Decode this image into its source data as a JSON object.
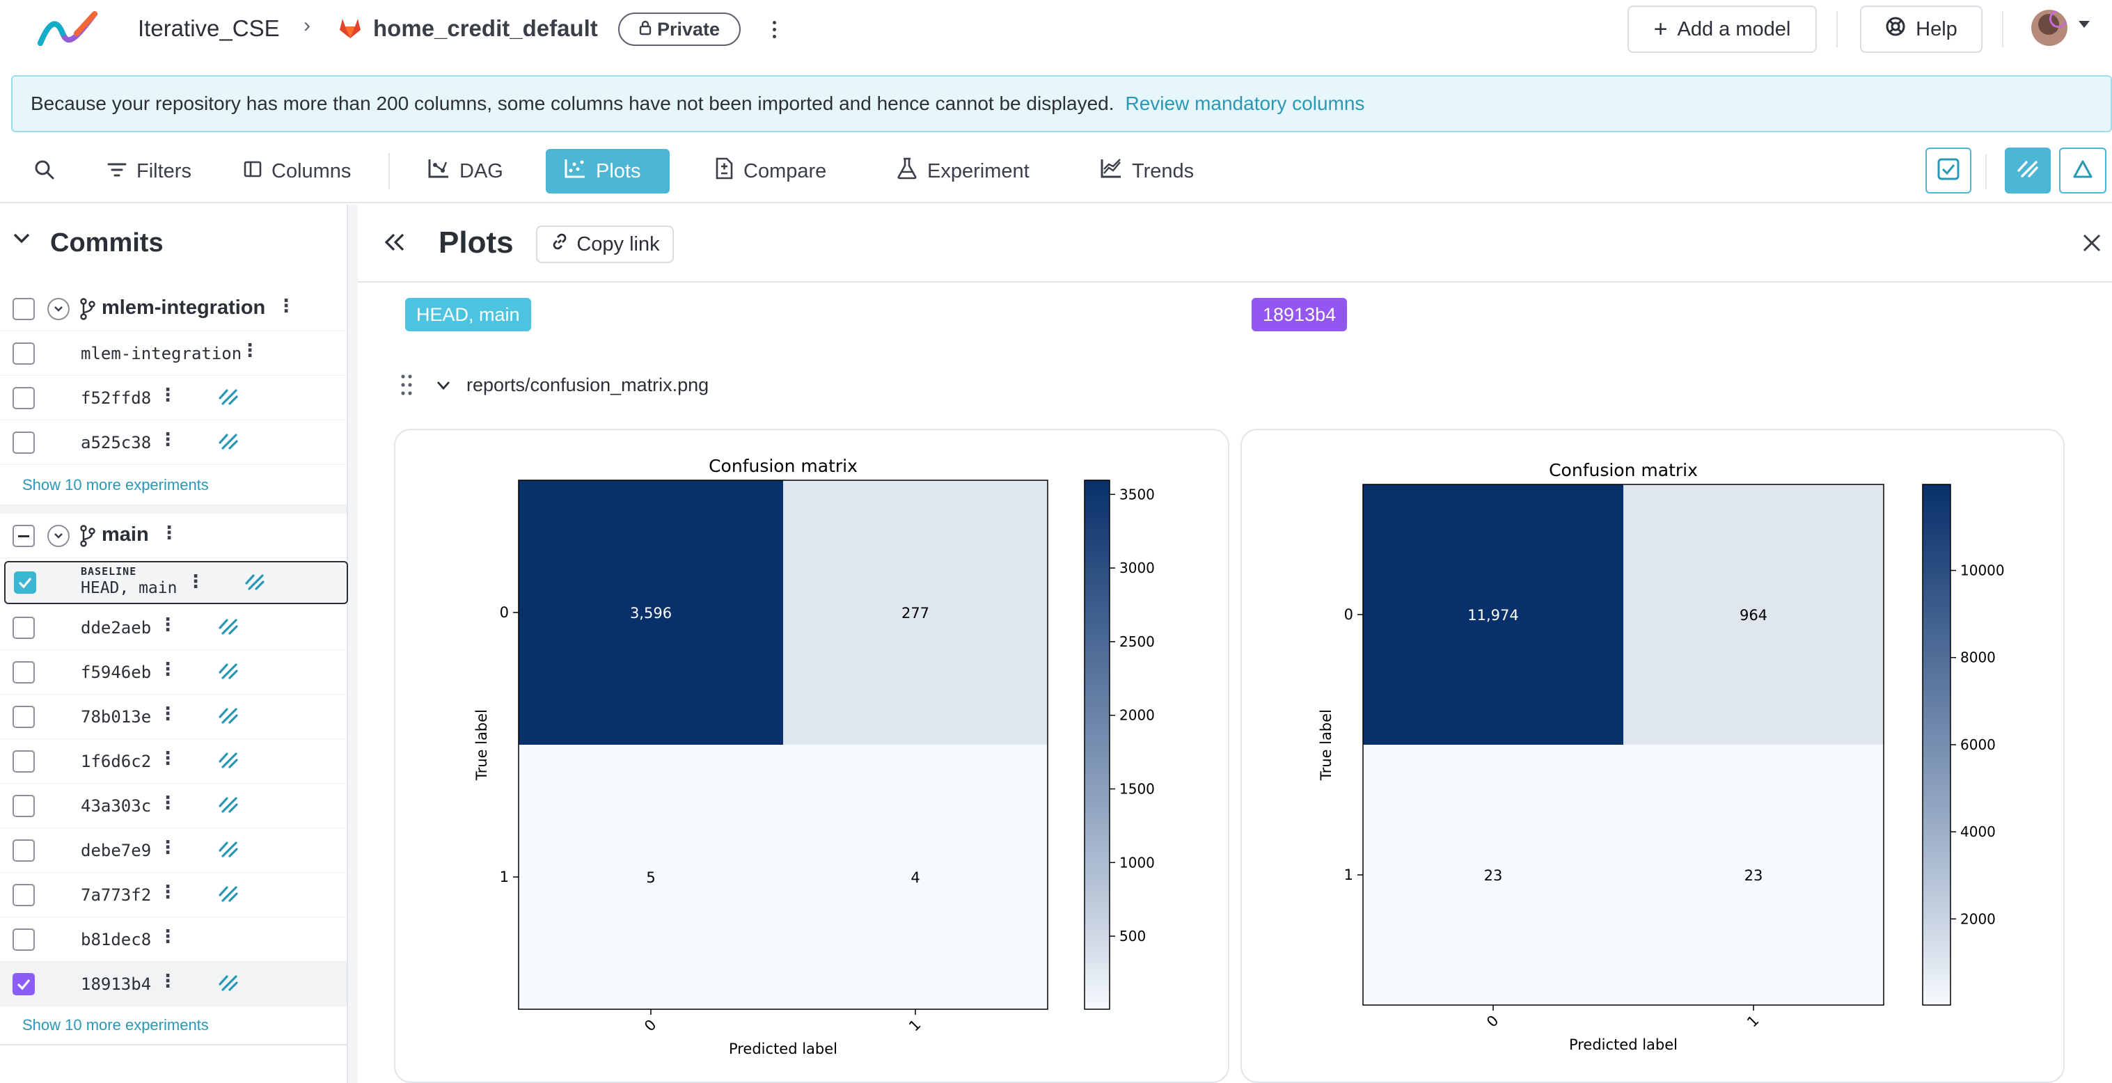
{
  "header": {
    "org_name": "Iterative_CSE",
    "repo_name": "home_credit_default",
    "visibility": "Private",
    "add_model_label": "Add a model",
    "help_label": "Help"
  },
  "banner": {
    "message": "Because your repository has more than 200 columns, some columns have not been imported and hence cannot be displayed.",
    "link_text": "Review mandatory columns"
  },
  "toolbar": {
    "filters_label": "Filters",
    "columns_label": "Columns",
    "dag_label": "DAG",
    "plots_label": "Plots",
    "compare_label": "Compare",
    "experiment_label": "Experiment",
    "trends_label": "Trends",
    "active_tab": "Plots"
  },
  "sidebar": {
    "title": "Commits",
    "branch1": {
      "name": "mlem-integration",
      "rows": [
        {
          "label": "mlem-integration",
          "stream": false
        },
        {
          "label": "f52ffd8",
          "stream": true
        },
        {
          "label": "a525c38",
          "stream": true
        }
      ],
      "more_link": "Show 10 more experiments"
    },
    "branch2": {
      "name": "main",
      "baseline_badge": "BASELINE",
      "baseline_label": "HEAD, main",
      "rows": [
        {
          "label": "dde2aeb",
          "stream": true
        },
        {
          "label": "f5946eb",
          "stream": true
        },
        {
          "label": "78b013e",
          "stream": true
        },
        {
          "label": "1f6d6c2",
          "stream": true
        },
        {
          "label": "43a303c",
          "stream": true
        },
        {
          "label": "debe7e9",
          "stream": true
        },
        {
          "label": "7a773f2",
          "stream": true
        },
        {
          "label": "b81dec8",
          "stream": false
        },
        {
          "label": "18913b4",
          "stream": true
        }
      ],
      "more_link": "Show 10 more experiments"
    }
  },
  "plots_panel": {
    "title": "Plots",
    "copy_link_label": "Copy link",
    "rev_tags": [
      {
        "label": "HEAD, main",
        "color": "#4cc3df"
      },
      {
        "label": "18913b4",
        "color": "#9456f0"
      }
    ],
    "plot_path": "reports/confusion_matrix.png"
  },
  "chart_data": [
    {
      "type": "heatmap",
      "title": "Confusion matrix",
      "xlabel": "Predicted label",
      "ylabel": "True label",
      "x_categories": [
        "0",
        "1"
      ],
      "y_categories": [
        "0",
        "1"
      ],
      "values": [
        [
          3596,
          277
        ],
        [
          5,
          4
        ]
      ],
      "cell_labels": [
        [
          "3,596",
          "277"
        ],
        [
          "5",
          "4"
        ]
      ],
      "colorbar_ticks": [
        500,
        1000,
        1500,
        2000,
        2500,
        3000,
        3500
      ],
      "colorbar_range": [
        4,
        3596
      ],
      "colormap": "Blues"
    },
    {
      "type": "heatmap",
      "title": "Confusion matrix",
      "xlabel": "Predicted label",
      "ylabel": "True label",
      "x_categories": [
        "0",
        "1"
      ],
      "y_categories": [
        "0",
        "1"
      ],
      "values": [
        [
          11974,
          964
        ],
        [
          23,
          23
        ]
      ],
      "cell_labels": [
        [
          "11,974",
          "964"
        ],
        [
          "23",
          "23"
        ]
      ],
      "colorbar_ticks": [
        2000,
        4000,
        6000,
        8000,
        10000
      ],
      "colorbar_range": [
        23,
        11974
      ],
      "colormap": "Blues"
    }
  ]
}
